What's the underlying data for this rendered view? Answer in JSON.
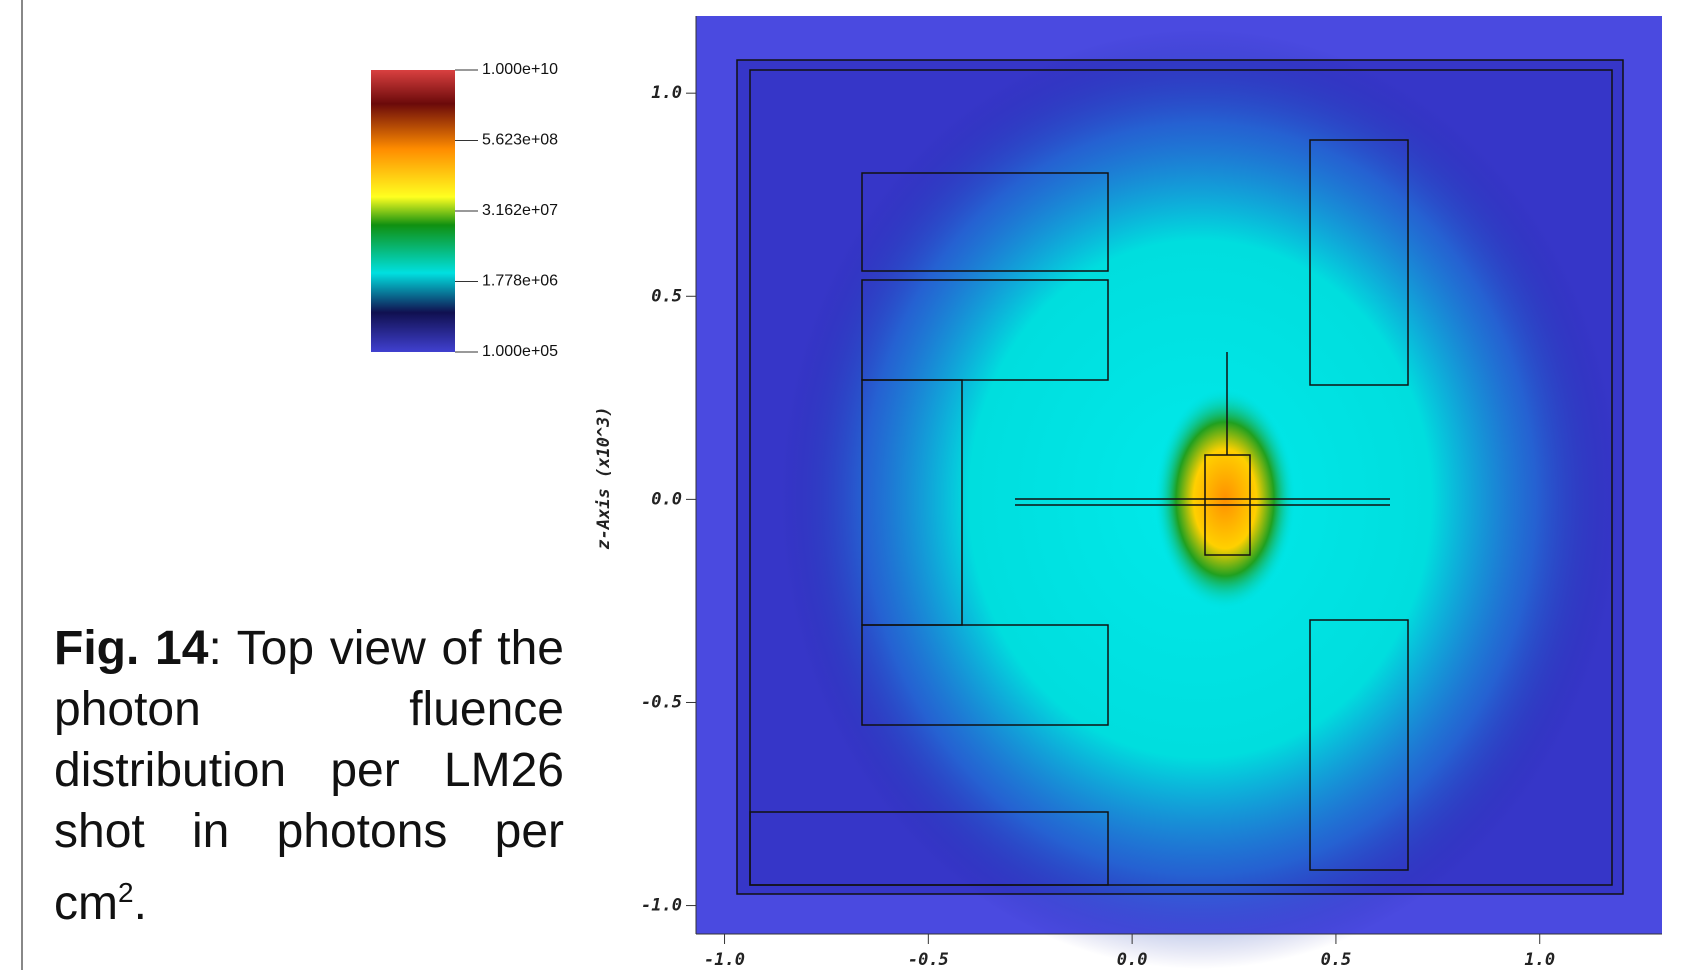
{
  "caption": {
    "label": "Fig. 14",
    "text": ": Top view of the photon fluence distribution per LM26 shot in photons per cm",
    "superscript": "2",
    "end": "."
  },
  "figure": {
    "ylabel": "z-Axis (x10^3)",
    "xlim": [
      -1.07,
      1.3
    ],
    "ylim": [
      -1.07,
      1.19
    ],
    "xticks": [
      {
        "value": -1,
        "label": "-1.0"
      },
      {
        "value": -0.5,
        "label": "-0.5"
      },
      {
        "value": 0,
        "label": "0.0"
      },
      {
        "value": 0.5,
        "label": "0.5"
      },
      {
        "value": 1,
        "label": "1.0"
      }
    ],
    "yticks": [
      {
        "value": 1,
        "label": "1.0"
      },
      {
        "value": 0.5,
        "label": "0.5"
      },
      {
        "value": 0,
        "label": "0.0"
      },
      {
        "value": -0.5,
        "label": "-0.5"
      },
      {
        "value": -1,
        "label": "-1.0"
      }
    ],
    "colorbar": {
      "log_scale": true,
      "lim": [
        100000,
        10000000000
      ],
      "ticks": [
        {
          "value": 10000000000,
          "label": "1.000e+10"
        },
        {
          "value": 562300000,
          "label": "5.623e+08"
        },
        {
          "value": 31620000,
          "label": "3.162e+07"
        },
        {
          "value": 1778000,
          "label": "1.778e+06"
        },
        {
          "value": 100000,
          "label": "1.000e+05"
        }
      ]
    }
  }
}
